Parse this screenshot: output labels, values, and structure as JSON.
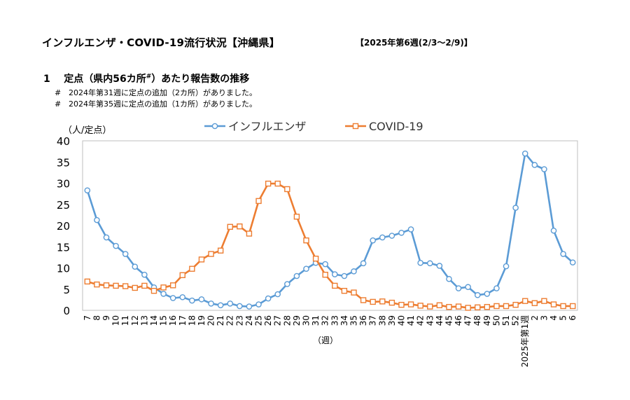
{
  "header": {
    "title": "インフルエンザ・COVID-19流行状況【沖縄県】",
    "week_range": "【2025年第6週(2/3〜2/9)】"
  },
  "section": {
    "number": "1",
    "heading_main": "定点（県内56カ所",
    "heading_sup": "#",
    "heading_rest": "）あたり報告数の推移",
    "notes": [
      {
        "mark": "#",
        "text": "2024年第31週に定点の追加（2カ所）がありました。"
      },
      {
        "mark": "#",
        "text": "2024年第35週に定点の追加（1カ所）がありました。"
      }
    ]
  },
  "chart_data": {
    "type": "line",
    "ylabel": "（人/定点）",
    "xlabel": "（週）",
    "ylim": [
      0,
      40
    ],
    "yticks": [
      0,
      5,
      10,
      15,
      20,
      25,
      30,
      35,
      40
    ],
    "grid": false,
    "legend_position": "top-center",
    "categories": [
      "7",
      "8",
      "9",
      "10",
      "11",
      "12",
      "13",
      "14",
      "15",
      "16",
      "17",
      "18",
      "19",
      "20",
      "21",
      "22",
      "23",
      "24",
      "25",
      "26",
      "27",
      "28",
      "29",
      "30",
      "31",
      "32",
      "33",
      "34",
      "35",
      "36",
      "37",
      "38",
      "39",
      "40",
      "41",
      "42",
      "43",
      "44",
      "45",
      "46",
      "47",
      "48",
      "49",
      "50",
      "51",
      "52",
      "2025年第1週",
      "2",
      "3",
      "4",
      "5",
      "6"
    ],
    "series": [
      {
        "name": "インフルエンザ",
        "color": "#5b9bd5",
        "marker": "circle",
        "values": [
          28.3,
          21.3,
          17.2,
          15.2,
          13.3,
          10.3,
          8.4,
          5.4,
          3.9,
          2.9,
          3.1,
          2.3,
          2.6,
          1.6,
          1.2,
          1.6,
          1.0,
          0.9,
          1.4,
          2.8,
          3.8,
          6.2,
          8.1,
          9.8,
          11.2,
          10.9,
          8.5,
          8.1,
          9.2,
          11.1,
          16.5,
          17.2,
          17.6,
          18.3,
          19.1,
          11.2,
          11.1,
          10.5,
          7.4,
          5.2,
          5.5,
          3.6,
          3.9,
          5.2,
          10.4,
          24.2,
          37.0,
          34.3,
          33.3,
          18.8,
          13.3,
          11.3
        ]
      },
      {
        "name": "COVID-19",
        "color": "#ed7d31",
        "marker": "square",
        "values": [
          6.8,
          6.1,
          5.9,
          5.8,
          5.7,
          5.3,
          5.8,
          4.6,
          5.4,
          5.9,
          8.3,
          9.8,
          12.0,
          13.3,
          14.1,
          19.7,
          19.8,
          18.1,
          25.8,
          29.9,
          29.9,
          28.6,
          22.1,
          16.5,
          12.2,
          8.4,
          5.8,
          4.6,
          4.2,
          2.4,
          2.0,
          2.1,
          1.8,
          1.3,
          1.4,
          1.1,
          0.9,
          1.2,
          0.8,
          0.9,
          0.6,
          0.7,
          0.8,
          1.0,
          1.0,
          1.3,
          2.2,
          1.7,
          2.2,
          1.4,
          1.0,
          1.0
        ]
      }
    ]
  }
}
